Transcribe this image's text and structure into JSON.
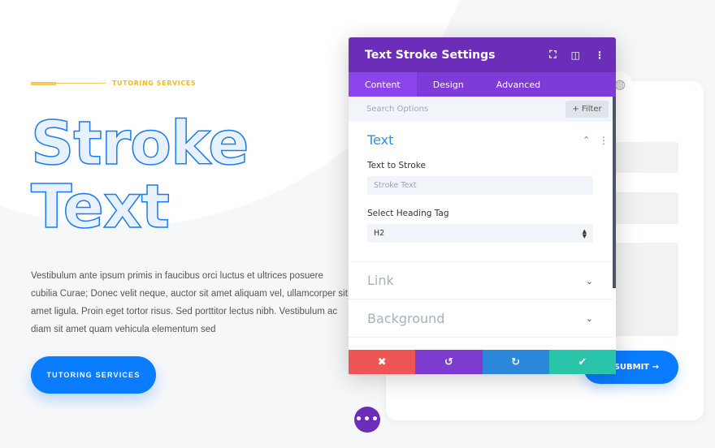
{
  "hero": {
    "eyebrow": "TUTORING SERVICES",
    "headline_line1": "Stroke",
    "headline_line2": "Text",
    "paragraph": "Vestibulum ante ipsum primis in faucibus orci luctus et ultrices posuere cubilia Curae; Donec velit neque, auctor sit amet aliquam vel, ullamcorper sit amet ligula. Proin eget tortor risus. Sed porttitor lectus nibh. Vestibulum ac diam sit amet quam vehicula elementum sed",
    "cta_label": "TUTORING SERVICES"
  },
  "form": {
    "submit_label": "SUBMIT →"
  },
  "modal": {
    "title": "Text Stroke Settings",
    "tabs": [
      {
        "label": "Content"
      },
      {
        "label": "Design"
      },
      {
        "label": "Advanced"
      }
    ],
    "search_placeholder": "Search Options",
    "filter_label": "+ Filter",
    "sections": {
      "text": {
        "title": "Text",
        "field1_label": "Text to Stroke",
        "field1_placeholder": "Stroke Text",
        "field2_label": "Select Heading Tag",
        "field2_value": "H2"
      },
      "link": {
        "title": "Link"
      },
      "background": {
        "title": "Background"
      }
    },
    "footer": {
      "cancel": "✖",
      "undo": "↺",
      "redo": "↻",
      "save": "✔"
    }
  },
  "colors": {
    "accent": "#0a7cff",
    "purple": "#6c2eb9",
    "eyebrow": "#f5b921",
    "cancel": "#ef5555",
    "undo": "#7e3bd0",
    "redo": "#2b87da",
    "save": "#29c4a9"
  }
}
